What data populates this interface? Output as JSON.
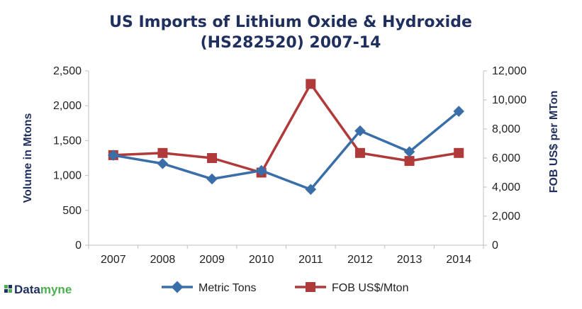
{
  "chart_data": {
    "type": "line",
    "title_line1": "US Imports of Lithium Oxide & Hydroxide",
    "title_line2": "(HS282520) 2007-14",
    "categories": [
      "2007",
      "2008",
      "2009",
      "2010",
      "2011",
      "2012",
      "2013",
      "2014"
    ],
    "ylabel_left": "Volume in Mtons",
    "ylabel_right": "FOB US$ per MTon",
    "ylim_left": [
      0,
      2500
    ],
    "ylim_right": [
      0,
      12000
    ],
    "yticks_left": [
      "0",
      "500",
      "1,000",
      "1,500",
      "2,000",
      "2,500"
    ],
    "yticks_right": [
      "0",
      "2,000",
      "4,000",
      "6,000",
      "8,000",
      "10,000",
      "12,000"
    ],
    "grid": false,
    "legend_position": "bottom",
    "series": [
      {
        "name": "Metric Tons",
        "axis": "left",
        "color": "#3a6ea8",
        "marker": "diamond",
        "values": [
          1290,
          1170,
          950,
          1070,
          800,
          1640,
          1340,
          1920
        ]
      },
      {
        "name": "FOB US$/Mton",
        "axis": "right",
        "color": "#b03a3a",
        "marker": "square",
        "values": [
          6200,
          6350,
          6000,
          5000,
          11100,
          6350,
          5800,
          6350
        ]
      }
    ]
  },
  "brand": {
    "name_part1": "Data",
    "name_part2": "myne",
    "color1": "#1f2f5e",
    "color2": "#4caf50"
  }
}
